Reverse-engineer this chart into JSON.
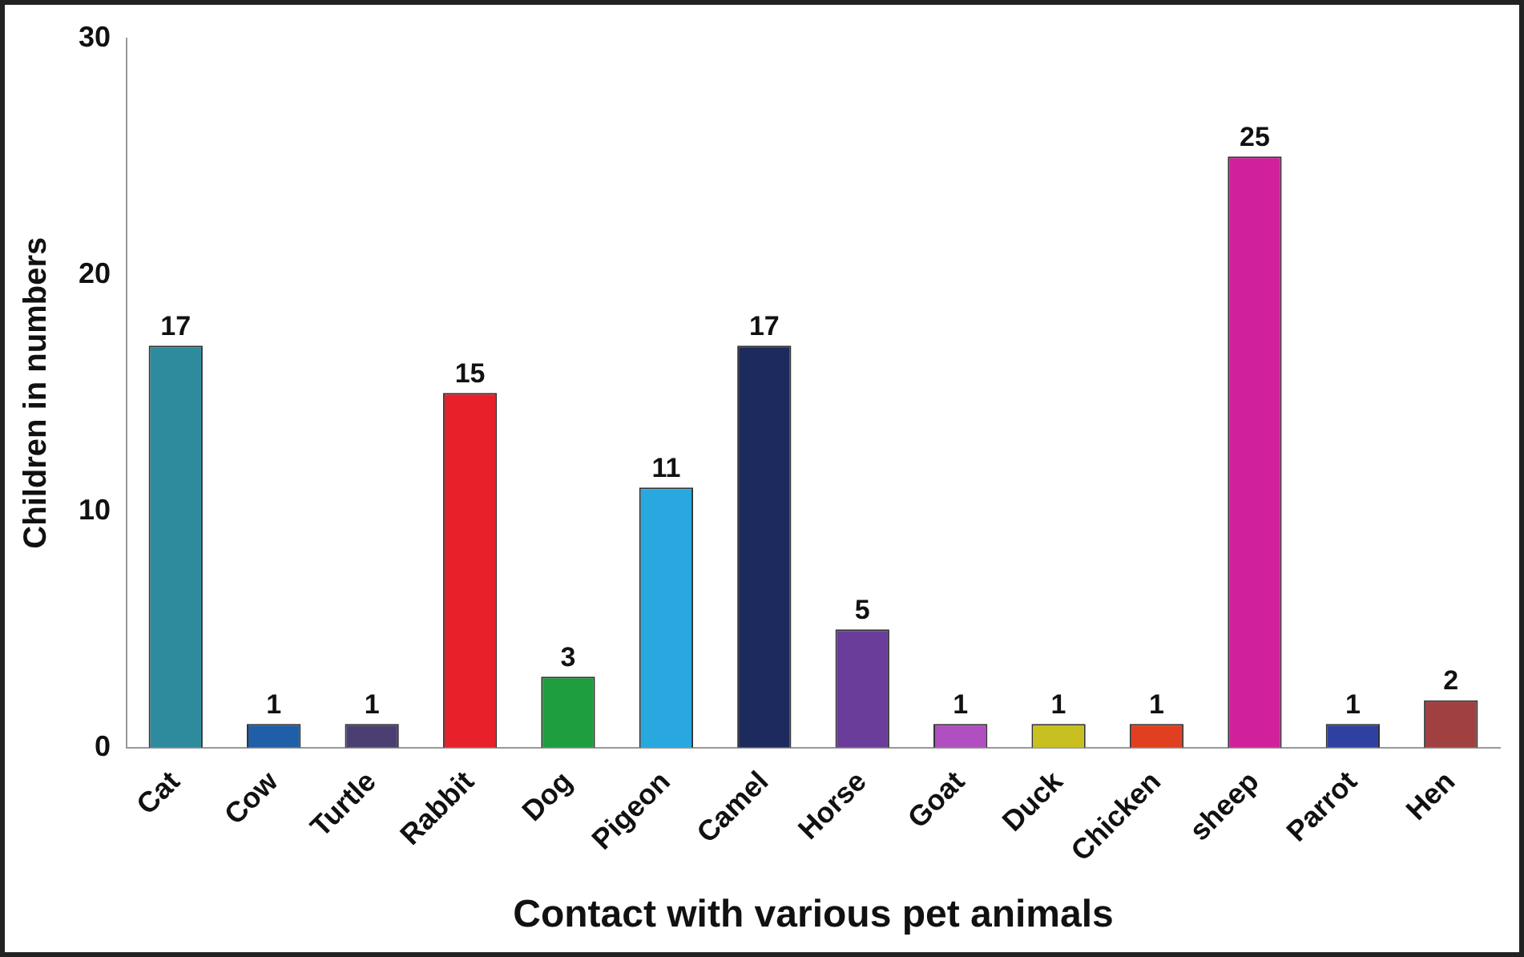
{
  "chart_data": {
    "type": "bar",
    "xlabel": "Contact with various pet animals",
    "ylabel": "Children in numbers",
    "categories": [
      "Cat",
      "Cow",
      "Turtle",
      "Rabbit",
      "Dog",
      "Pigeon",
      "Camel",
      "Horse",
      "Goat",
      "Duck",
      "Chicken",
      "sheep",
      "Parrot",
      "Hen"
    ],
    "values": [
      17,
      1,
      1,
      15,
      3,
      11,
      17,
      5,
      1,
      1,
      1,
      25,
      1,
      2
    ],
    "colors": [
      "#2e8b9e",
      "#1f5fa8",
      "#4b3f72",
      "#e8202a",
      "#1f9e3f",
      "#29a8e0",
      "#1c2a5e",
      "#6a3d9a",
      "#b04fc0",
      "#c8c020",
      "#e04020",
      "#d0209a",
      "#3040a0",
      "#a04040"
    ],
    "ylim": [
      0,
      30
    ],
    "yticks": [
      0,
      10,
      20,
      30
    ],
    "grid": false,
    "legend": false,
    "data_labels": true
  }
}
